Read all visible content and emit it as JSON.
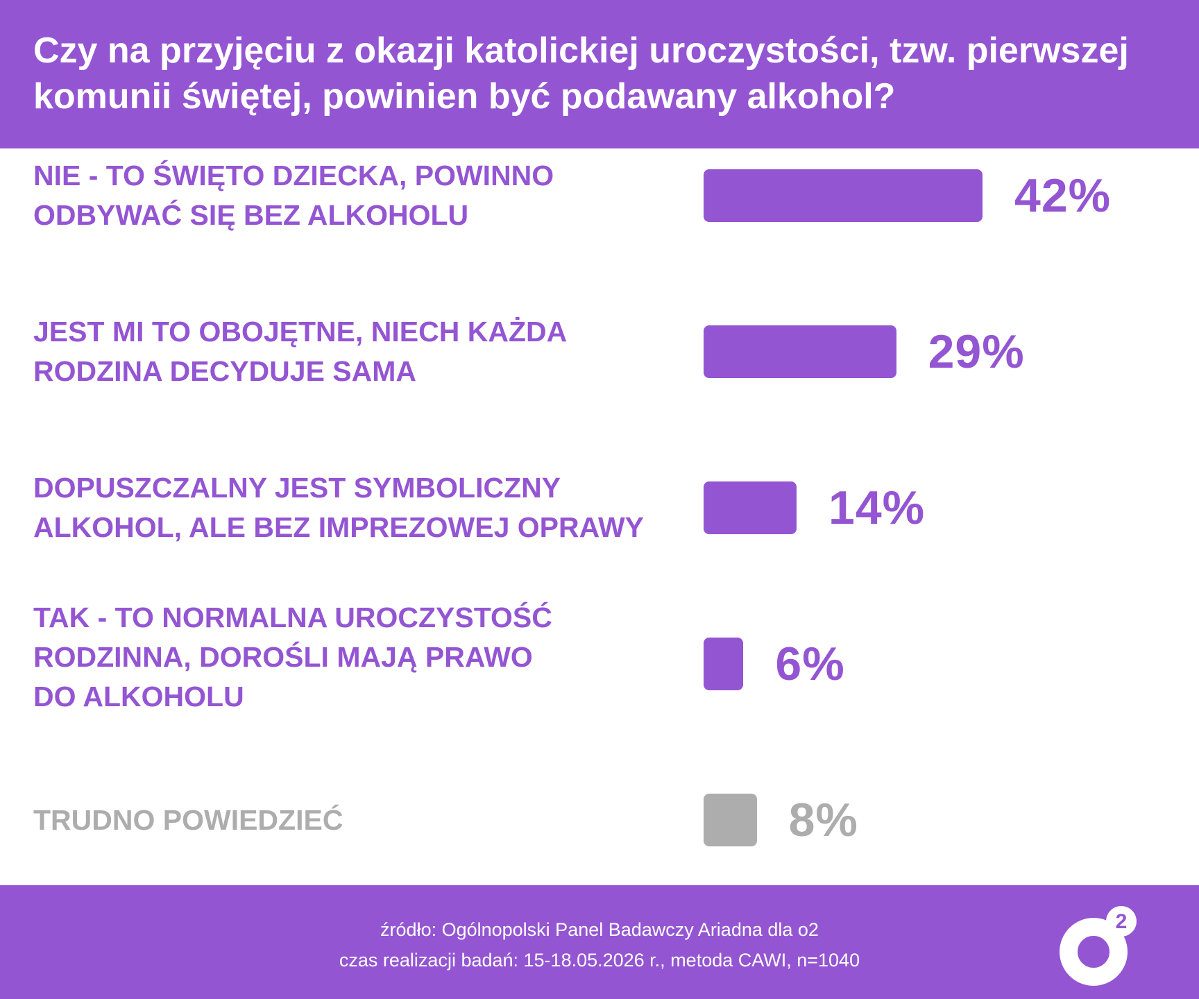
{
  "chart_data": {
    "type": "bar",
    "orientation": "horizontal",
    "title": "Czy na przyjęciu z okazji katolickiej uroczystości, tzw. pierwszej komunii świętej, powinien być podawany alkohol?",
    "categories": [
      [
        "NIE - TO ŚWIĘTO DZIECKA, POWINNO",
        "ODBYWAĆ SIĘ BEZ ALKOHOLU"
      ],
      [
        "JEST MI TO OBOJĘTNE, NIECH KAŻDA",
        "RODZINA DECYDUJE SAMA"
      ],
      [
        "DOPUSZCZALNY JEST SYMBOLICZNY",
        "ALKOHOL, ALE BEZ IMPREZOWEJ OPRAWY"
      ],
      [
        "TAK - TO NORMALNA UROCZYSTOŚĆ",
        "RODZINNA, DOROŚLI MAJĄ PRAWO",
        "DO ALKOHOLU"
      ],
      [
        "TRUDNO POWIEDZIEĆ"
      ]
    ],
    "values": [
      42,
      29,
      14,
      6,
      8
    ],
    "value_labels": [
      "42%",
      "29%",
      "14%",
      "6%",
      "8%"
    ],
    "bar_colors": [
      "#9455d3",
      "#9455d3",
      "#9455d3",
      "#9455d3",
      "#adadad"
    ],
    "xlim": [
      0,
      42
    ],
    "grid": false,
    "legend": "none"
  },
  "colors": {
    "accent": "#9455d3",
    "muted": "#adadad",
    "background": "#ffffff"
  },
  "footer": {
    "source": "źródło: Ogólnopolski Panel Badawczy Ariadna dla o2",
    "method": "czas realizacji badań: 15-18.05.2026 r., metoda CAWI, n=1040"
  },
  "logo": {
    "icon": "o2-logo-icon",
    "superscript": "2"
  }
}
